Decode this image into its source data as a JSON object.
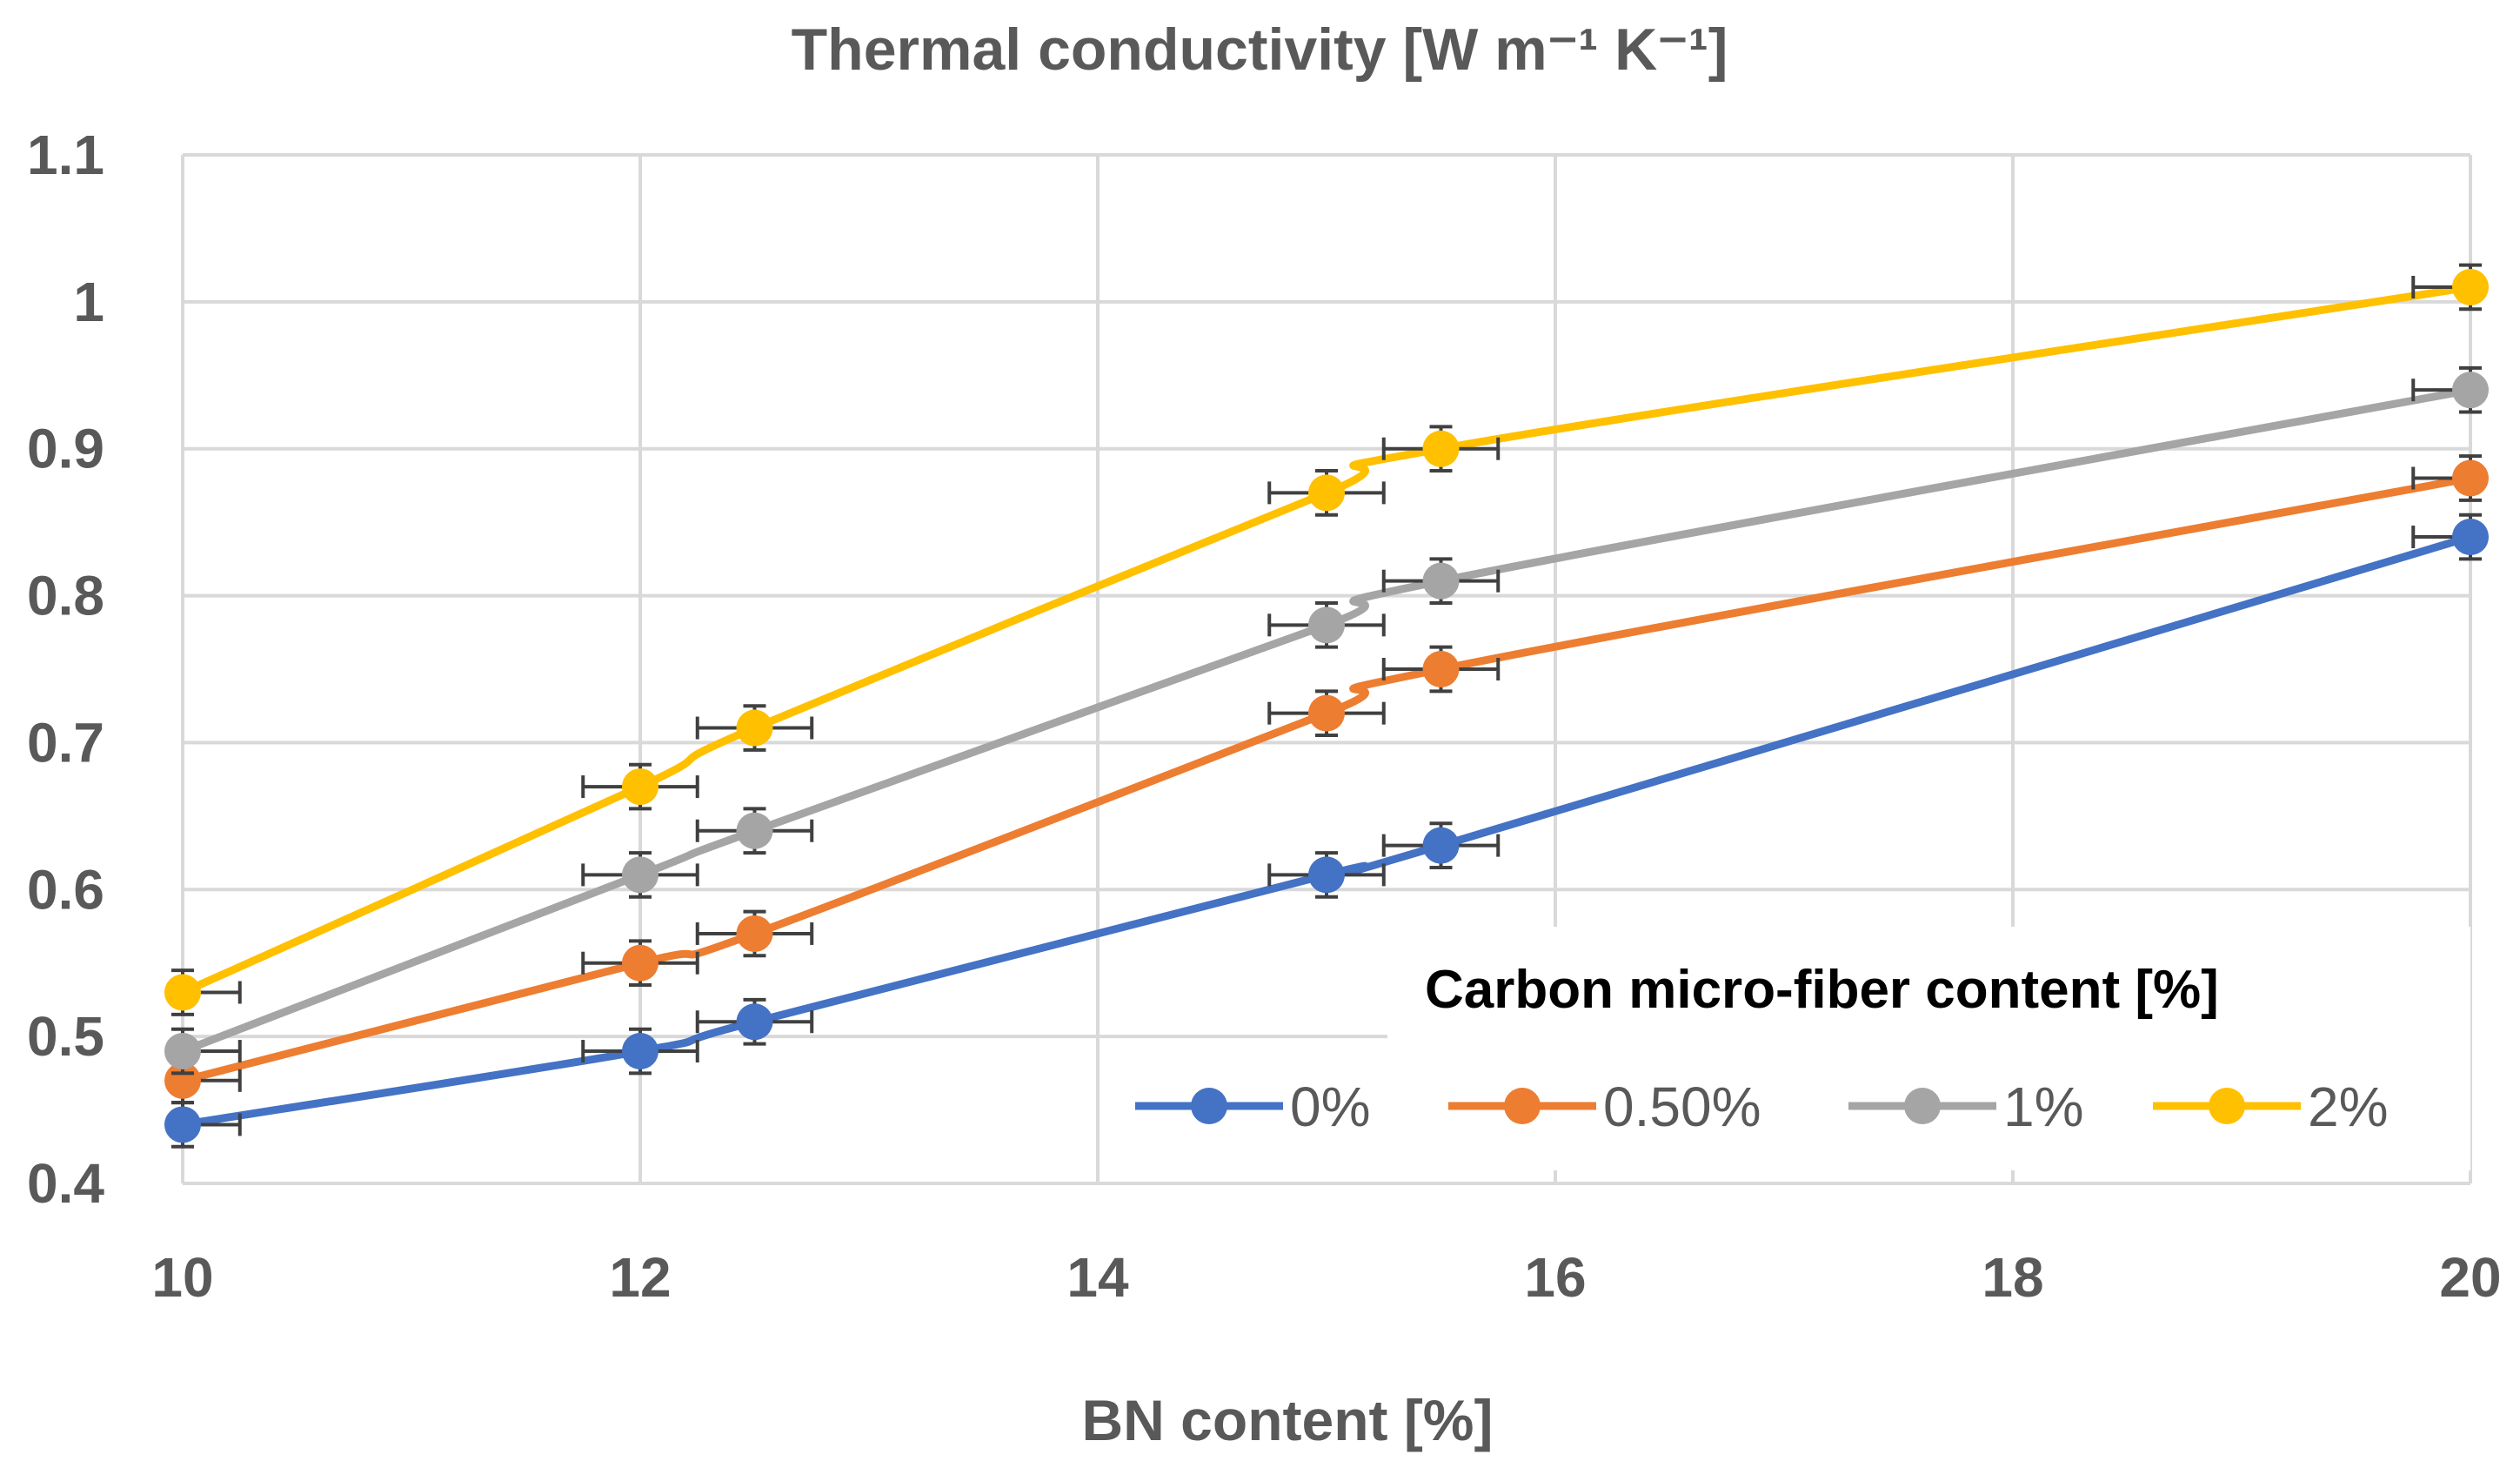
{
  "chart_data": {
    "type": "line",
    "title": "Thermal conductivity [W m⁻¹ K⁻¹]",
    "xlabel": "BN content [%]",
    "ylabel": "",
    "xlim": [
      10,
      20
    ],
    "ylim": [
      0.4,
      1.1
    ],
    "x_ticks": [
      "10",
      "12",
      "14",
      "16",
      "18",
      "20"
    ],
    "y_ticks": [
      "0.4",
      "0.5",
      "0.6",
      "0.7",
      "0.8",
      "0.9",
      "1",
      "1.1"
    ],
    "x_tick_values": [
      10,
      12,
      14,
      16,
      18,
      20
    ],
    "y_tick_values": [
      0.4,
      0.5,
      0.6,
      0.7,
      0.8,
      0.9,
      1.0,
      1.1
    ],
    "grid": true,
    "legend": {
      "title": "Carbon micro-fiber  content [%]",
      "position": "bottom-right"
    },
    "x": [
      10,
      12,
      12.5,
      15,
      15.5,
      20
    ],
    "x_error": 0.25,
    "y_error": 0.015,
    "series": [
      {
        "name": "0%",
        "color": "#4472c4",
        "values": [
          0.44,
          0.49,
          0.51,
          0.61,
          0.63,
          0.84
        ]
      },
      {
        "name": "0.50%",
        "color": "#ed7d31",
        "values": [
          0.47,
          0.55,
          0.57,
          0.72,
          0.75,
          0.88
        ]
      },
      {
        "name": "1%",
        "color": "#a5a5a5",
        "values": [
          0.49,
          0.61,
          0.64,
          0.78,
          0.81,
          0.94
        ]
      },
      {
        "name": "2%",
        "color": "#ffc000",
        "values": [
          0.53,
          0.67,
          0.71,
          0.87,
          0.9,
          1.01
        ]
      }
    ]
  }
}
